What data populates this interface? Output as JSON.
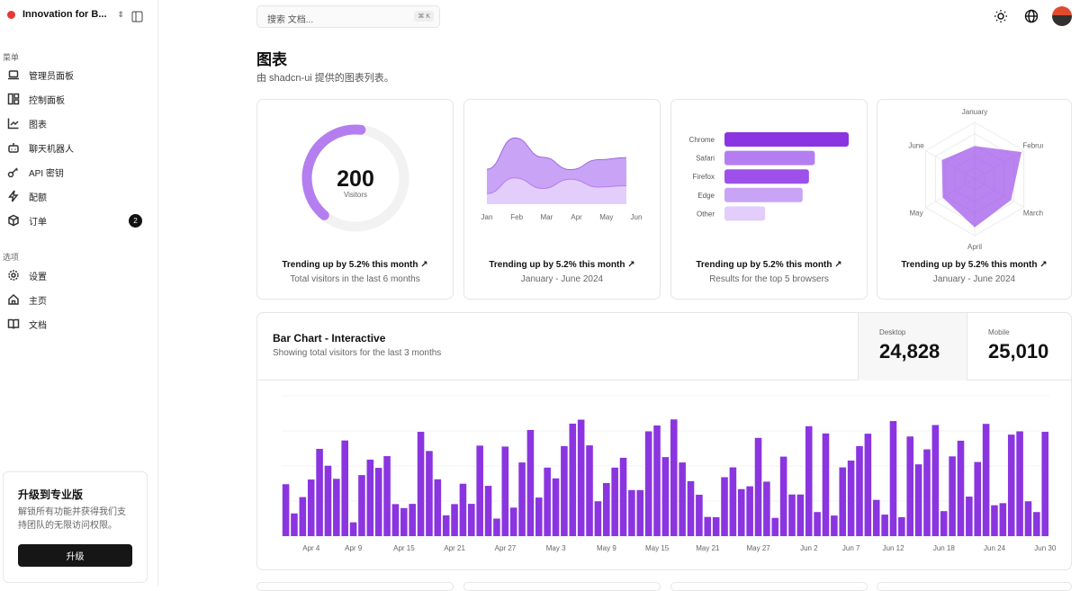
{
  "sidebar": {
    "team": "Innovation for B...",
    "sections": [
      {
        "label": "菜单"
      },
      {
        "label": "选项"
      }
    ],
    "items": [
      {
        "label": "管理员面板",
        "icon": "laptop-icon"
      },
      {
        "label": "控制面板",
        "icon": "layout-dashboard-icon"
      },
      {
        "label": "图表",
        "icon": "line-chart-icon"
      },
      {
        "label": "聊天机器人",
        "icon": "bot-icon"
      },
      {
        "label": "API 密钥",
        "icon": "key-icon"
      },
      {
        "label": "配额",
        "icon": "zap-icon"
      },
      {
        "label": "订单",
        "icon": "package-icon",
        "badge": "2"
      },
      {
        "label": "设置",
        "icon": "settings-icon"
      },
      {
        "label": "主页",
        "icon": "home-icon"
      },
      {
        "label": "文档",
        "icon": "book-icon"
      }
    ],
    "promo": {
      "title": "升级到专业版",
      "text": "解锁所有功能并获得我们支持团队的无限访问权限。",
      "button": "升级"
    }
  },
  "header": {
    "search_placeholder": "搜索 文档...",
    "shortcut": "⌘ K"
  },
  "page": {
    "title": "图表",
    "subtitle": "由 shadcn-ui 提供的图表列表。"
  },
  "accent": "#8a35e0",
  "cards": [
    {
      "trend": "Trending up by 5.2% this month",
      "desc": "Total visitors in the last 6 months"
    },
    {
      "trend": "Trending up by 5.2% this month",
      "desc": "January - June 2024"
    },
    {
      "trend": "Trending up by 5.2% this month",
      "desc": "Results for the top 5 browsers"
    },
    {
      "trend": "Trending up by 5.2% this month",
      "desc": "January - June 2024"
    }
  ],
  "bar_card": {
    "title": "Bar Chart - Interactive",
    "subtitle": "Showing total visitors for the last 3 months",
    "stats": [
      {
        "label": "Desktop",
        "value": "24,828"
      },
      {
        "label": "Mobile",
        "value": "25,010"
      }
    ]
  },
  "chart_data": [
    {
      "type": "radial",
      "value": 200,
      "label": "Visitors",
      "max": 320
    },
    {
      "type": "area",
      "stacked": true,
      "categories": [
        "Jan",
        "Feb",
        "Mar",
        "Apr",
        "May",
        "Jun"
      ],
      "series": [
        {
          "values": [
            80,
            200,
            120,
            190,
            130,
            140
          ]
        },
        {
          "values": [
            186,
            305,
            237,
            73,
            209,
            214
          ]
        }
      ],
      "ylim": [
        0,
        520
      ]
    },
    {
      "type": "bar",
      "orientation": "horizontal",
      "categories": [
        "Chrome",
        "Safari",
        "Firefox",
        "Edge",
        "Other"
      ],
      "values": [
        275,
        200,
        187,
        173,
        90
      ],
      "colors": [
        "#8a35e0",
        "#b47ef0",
        "#9d50ea",
        "#c9a3f5",
        "#e3cdfa"
      ]
    },
    {
      "type": "radar",
      "categories": [
        "January",
        "February",
        "March",
        "April",
        "May",
        "June"
      ],
      "values": [
        186,
        305,
        237,
        273,
        209,
        214
      ],
      "rmax": 320
    },
    {
      "type": "bar",
      "xlim": [
        "Apr 1",
        "Jun 30"
      ],
      "ylim": [
        0,
        600
      ],
      "grid": true,
      "tick_labels": [
        "Apr 4",
        "Apr 9",
        "Apr 15",
        "Apr 21",
        "Apr 27",
        "May 3",
        "May 9",
        "May 15",
        "May 21",
        "May 27",
        "Jun 2",
        "Jun 7",
        "Jun 12",
        "Jun 18",
        "Jun 24",
        "Jun 30"
      ],
      "values": [
        222,
        97,
        167,
        242,
        373,
        301,
        245,
        409,
        59,
        261,
        327,
        292,
        342,
        137,
        120,
        138,
        446,
        364,
        243,
        89,
        137,
        224,
        138,
        387,
        215,
        75,
        383,
        122,
        315,
        454,
        165,
        293,
        247,
        385,
        481,
        498,
        388,
        149,
        227,
        293,
        335,
        197,
        197,
        448,
        473,
        338,
        499,
        315,
        235,
        177,
        82,
        81,
        252,
        294,
        201,
        213,
        420,
        233,
        78,
        340,
        178,
        178,
        470,
        103,
        439,
        88,
        294,
        323,
        385,
        438,
        155,
        92,
        492,
        81,
        426,
        307,
        371,
        475,
        107,
        341,
        408,
        169,
        317,
        480,
        132,
        141,
        434,
        448,
        149,
        103,
        446
      ]
    }
  ]
}
